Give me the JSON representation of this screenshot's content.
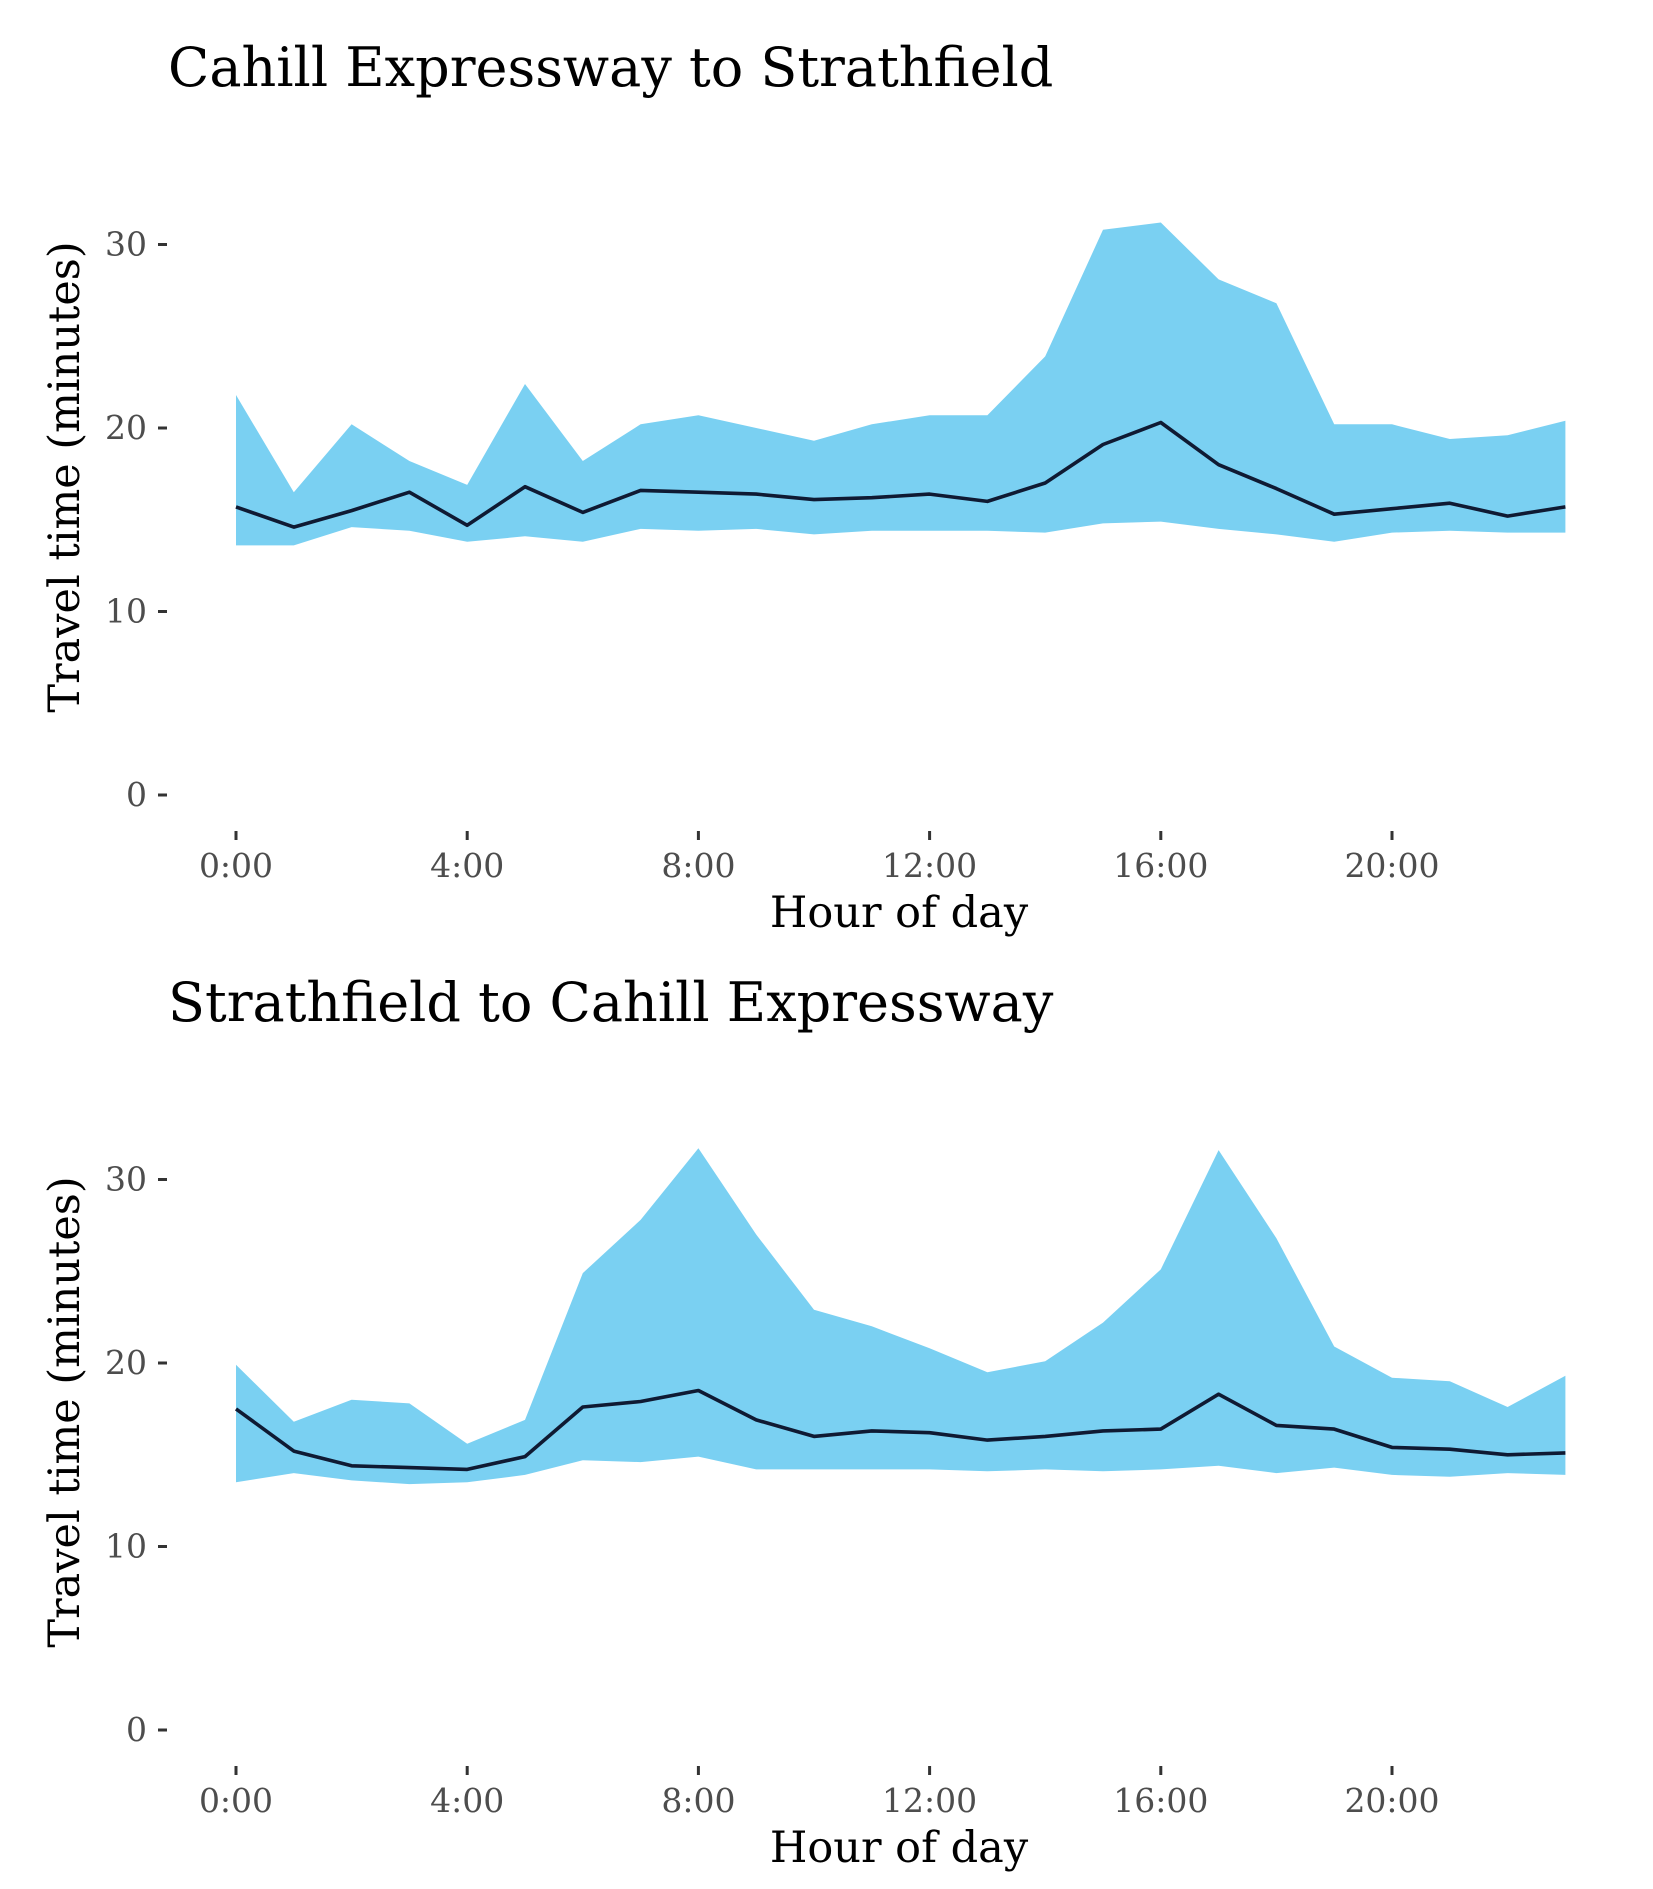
{
  "chart_data": [
    {
      "type": "area",
      "title": "Cahill Expressway to Strathfield",
      "xlabel": "Hour of day",
      "ylabel": "Travel time (minutes)",
      "x": [
        0,
        1,
        2,
        3,
        4,
        5,
        6,
        7,
        8,
        9,
        10,
        11,
        12,
        13,
        14,
        15,
        16,
        17,
        18,
        19,
        20,
        21,
        22,
        23
      ],
      "x_ticks": [
        0,
        4,
        8,
        12,
        16,
        20
      ],
      "x_tick_labels": [
        "0:00",
        "4:00",
        "8:00",
        "12:00",
        "16:00",
        "20:00"
      ],
      "y_ticks": [
        0,
        10,
        20,
        30
      ],
      "y_tick_labels": [
        "0",
        "10",
        "20",
        "30"
      ],
      "xlim": [
        0,
        23
      ],
      "ylim": [
        0,
        31
      ],
      "grid": false,
      "legend": "none",
      "colors": {
        "band": "#7ad0f2",
        "line": "#0f1a33"
      },
      "series": [
        {
          "role": "band_lower",
          "values": [
            13.6,
            13.6,
            14.6,
            14.4,
            13.8,
            14.1,
            13.8,
            14.5,
            14.4,
            14.5,
            14.2,
            14.4,
            14.4,
            14.4,
            14.3,
            14.8,
            14.9,
            14.5,
            14.2,
            13.8,
            14.3,
            14.4,
            14.3,
            14.3
          ]
        },
        {
          "role": "band_upper",
          "values": [
            21.8,
            16.5,
            20.2,
            18.2,
            16.9,
            22.4,
            18.2,
            20.2,
            20.7,
            20.0,
            19.3,
            20.2,
            20.7,
            20.7,
            23.9,
            30.8,
            31.2,
            28.1,
            26.8,
            20.2,
            20.2,
            19.4,
            19.6,
            20.4
          ]
        },
        {
          "role": "median",
          "values": [
            15.7,
            14.6,
            15.5,
            16.5,
            14.7,
            16.8,
            15.4,
            16.6,
            16.5,
            16.4,
            16.1,
            16.2,
            16.4,
            16.0,
            17.0,
            19.1,
            20.3,
            18.0,
            16.7,
            15.3,
            15.6,
            15.9,
            15.2,
            15.7
          ]
        }
      ]
    },
    {
      "type": "area",
      "title": "Strathfield to Cahill Expressway",
      "xlabel": "Hour of day",
      "ylabel": "Travel time (minutes)",
      "x": [
        0,
        1,
        2,
        3,
        4,
        5,
        6,
        7,
        8,
        9,
        10,
        11,
        12,
        13,
        14,
        15,
        16,
        17,
        18,
        19,
        20,
        21,
        22,
        23
      ],
      "x_ticks": [
        0,
        4,
        8,
        12,
        16,
        20
      ],
      "x_tick_labels": [
        "0:00",
        "4:00",
        "8:00",
        "12:00",
        "16:00",
        "20:00"
      ],
      "y_ticks": [
        0,
        10,
        20,
        30
      ],
      "y_tick_labels": [
        "0",
        "10",
        "20",
        "30"
      ],
      "xlim": [
        0,
        23
      ],
      "ylim": [
        0,
        31
      ],
      "grid": false,
      "legend": "none",
      "colors": {
        "band": "#7ad0f2",
        "line": "#0f1a33"
      },
      "series": [
        {
          "role": "band_lower",
          "values": [
            13.5,
            14.0,
            13.6,
            13.4,
            13.5,
            13.9,
            14.7,
            14.6,
            14.9,
            14.2,
            14.2,
            14.2,
            14.2,
            14.1,
            14.2,
            14.1,
            14.2,
            14.4,
            14.0,
            14.3,
            13.9,
            13.8,
            14.0,
            13.9
          ]
        },
        {
          "role": "band_upper",
          "values": [
            19.9,
            16.8,
            18.0,
            17.8,
            15.6,
            16.9,
            24.9,
            27.8,
            31.7,
            27.0,
            22.9,
            22.0,
            20.8,
            19.5,
            20.1,
            22.2,
            25.1,
            31.6,
            26.8,
            20.9,
            19.2,
            19.0,
            17.6,
            19.3
          ]
        },
        {
          "role": "median",
          "values": [
            17.5,
            15.2,
            14.4,
            14.3,
            14.2,
            14.9,
            17.6,
            17.9,
            18.5,
            16.9,
            16.0,
            16.3,
            16.2,
            15.8,
            16.0,
            16.3,
            16.4,
            18.3,
            16.6,
            16.4,
            15.4,
            15.3,
            15.0,
            15.1
          ]
        }
      ]
    }
  ]
}
